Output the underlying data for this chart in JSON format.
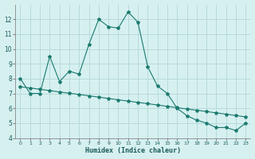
{
  "xlabel": "Humidex (Indice chaleur)",
  "bg_color": "#d6f0f0",
  "grid_color": "#b8dada",
  "line_color": "#1a7a6e",
  "xlim": [
    -0.5,
    23.5
  ],
  "ylim": [
    4,
    13
  ],
  "yticks": [
    4,
    5,
    6,
    7,
    8,
    9,
    10,
    11,
    12
  ],
  "xticks": [
    0,
    1,
    2,
    3,
    4,
    5,
    6,
    7,
    8,
    9,
    10,
    11,
    12,
    13,
    14,
    15,
    16,
    17,
    18,
    19,
    20,
    21,
    22,
    23
  ],
  "line1_x": [
    0,
    1,
    2,
    3,
    4,
    5,
    6,
    7,
    8,
    9,
    10,
    11,
    12,
    13,
    14,
    15,
    16,
    17,
    18,
    19,
    20,
    21,
    22,
    23
  ],
  "line1_y": [
    8.0,
    7.0,
    7.0,
    9.5,
    7.8,
    8.5,
    8.3,
    10.3,
    12.0,
    11.5,
    11.4,
    12.5,
    11.8,
    8.8,
    7.5,
    7.0,
    6.0,
    5.5,
    5.2,
    5.0,
    4.7,
    4.7,
    4.5,
    5.0
  ],
  "line2_x": [
    0,
    1,
    2,
    3,
    4,
    5,
    6,
    7,
    8,
    9,
    10,
    11,
    12,
    13,
    14,
    15,
    16,
    17,
    18,
    19,
    20,
    21,
    22,
    23
  ],
  "line2_y": [
    7.45,
    7.37,
    7.28,
    7.19,
    7.1,
    7.01,
    6.93,
    6.84,
    6.75,
    6.66,
    6.57,
    6.48,
    6.4,
    6.31,
    6.22,
    6.13,
    6.04,
    5.95,
    5.87,
    5.78,
    5.69,
    5.6,
    5.51,
    5.42
  ]
}
